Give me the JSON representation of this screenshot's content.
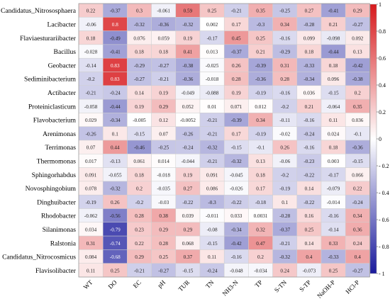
{
  "chart_data": {
    "type": "heatmap",
    "rows": [
      "Candidatus_Nitrososphaera",
      "Lacibacter",
      "Flaviaesturariibacter",
      "Bacillus",
      "Geobacter",
      "Sediminibacterium",
      "Actibacter",
      "Proteiniclasticum",
      "Flavobacterium",
      "Arenimonas",
      "Terrimonas",
      "Thermomonas",
      "Sphingorhabdus",
      "Novosphingobium",
      "Dinghuibacter",
      "Rhodobacter",
      "Silanimonas",
      "Ralstonia",
      "Candidatus_Nitrocosmicus",
      "Flavisolibacter"
    ],
    "columns": [
      "WT",
      "DO",
      "EC",
      "pH",
      "TUR",
      "TN",
      "NH3-N",
      "TP",
      "S-TN",
      "S-TP",
      "NaOH-P",
      "HCl-P"
    ],
    "values": [
      [
        "0.22",
        "-0.37",
        "0.3",
        "-0.061",
        "0.59",
        "0.25",
        "-0.21",
        "0.35",
        "-0.25",
        "0.27",
        "-0.41",
        "0.29"
      ],
      [
        "-0.06",
        "0.8",
        "-0.32",
        "-0.36",
        "-0.32",
        "0.002",
        "0.17",
        "-0.3",
        "0.34",
        "-0.28",
        "0.21",
        "-0.27"
      ],
      [
        "0.18",
        "-0.49",
        "0.076",
        "0.059",
        "0.19",
        "-0.17",
        "0.45",
        "0.25",
        "-0.16",
        "0.099",
        "-0.098",
        "0.092"
      ],
      [
        "-0.028",
        "-0.41",
        "0.18",
        "0.18",
        "0.41",
        "0.013",
        "-0.37",
        "0.21",
        "-0.29",
        "0.18",
        "-0.44",
        "0.13"
      ],
      [
        "-0.14",
        "0.83",
        "-0.29",
        "-0.27",
        "-0.38",
        "-0.025",
        "0.26",
        "-0.39",
        "0.31",
        "-0.33",
        "0.18",
        "-0.42"
      ],
      [
        "-0.2",
        "0.83",
        "-0.27",
        "-0.21",
        "-0.36",
        "-0.018",
        "0.28",
        "-0.36",
        "0.28",
        "-0.34",
        "0.096",
        "-0.38"
      ],
      [
        "-0.21",
        "-0.24",
        "0.14",
        "0.19",
        "-0.049",
        "-0.088",
        "0.19",
        "-0.19",
        "-0.16",
        "0.036",
        "-0.15",
        "0.2"
      ],
      [
        "-0.058",
        "-0.44",
        "0.19",
        "0.29",
        "0.052",
        "0.01",
        "0.071",
        "0.012",
        "-0.2",
        "0.21",
        "-0.064",
        "0.35"
      ],
      [
        "0.029",
        "-0.34",
        "-0.005",
        "0.12",
        "-0.0052",
        "-0.21",
        "-0.39",
        "0.34",
        "-0.11",
        "-0.16",
        "0.11",
        "0.036"
      ],
      [
        "-0.26",
        "0.1",
        "-0.15",
        "0.07",
        "-0.26",
        "-0.21",
        "0.17",
        "-0.19",
        "-0.02",
        "-0.24",
        "0.024",
        "-0.1"
      ],
      [
        "0.07",
        "0.44",
        "-0.46",
        "-0.25",
        "-0.24",
        "-0.32",
        "-0.15",
        "-0.1",
        "0.26",
        "-0.16",
        "0.18",
        "-0.36"
      ],
      [
        "0.017",
        "-0.13",
        "0.061",
        "0.014",
        "-0.044",
        "-0.21",
        "-0.32",
        "0.13",
        "-0.06",
        "-0.23",
        "0.003",
        "-0.15"
      ],
      [
        "0.091",
        "-0.055",
        "0.18",
        "-0.018",
        "0.19",
        "0.091",
        "-0.045",
        "0.18",
        "-0.2",
        "-0.22",
        "-0.17",
        "0.066"
      ],
      [
        "0.078",
        "-0.32",
        "0.2",
        "-0.035",
        "0.27",
        "0.086",
        "-0.026",
        "0.17",
        "-0.19",
        "0.14",
        "-0.079",
        "0.22"
      ],
      [
        "-0.19",
        "0.26",
        "-0.2",
        "-0.03",
        "-0.22",
        "-0.3",
        "-0.22",
        "-0.18",
        "0.1",
        "-0.22",
        "-0.014",
        "-0.24"
      ],
      [
        "-0.062",
        "-0.56",
        "0.28",
        "0.38",
        "0.039",
        "-0.011",
        "0.033",
        "0.0031",
        "-0.28",
        "0.16",
        "-0.16",
        "0.34"
      ],
      [
        "0.034",
        "-0.79",
        "0.23",
        "0.29",
        "0.29",
        "-0.08",
        "-0.34",
        "0.32",
        "-0.37",
        "0.25",
        "-0.14",
        "0.36"
      ],
      [
        "0.31",
        "-0.74",
        "0.22",
        "0.28",
        "0.068",
        "-0.15",
        "-0.42",
        "0.47",
        "-0.21",
        "0.14",
        "0.33",
        "0.24"
      ],
      [
        "0.084",
        "-0.68",
        "0.29",
        "0.25",
        "0.37",
        "0.11",
        "-0.16",
        "0.2",
        "-0.32",
        "0.4",
        "-0.33",
        "0.4"
      ],
      [
        "0.11",
        "0.25",
        "-0.21",
        "-0.27",
        "-0.15",
        "-0.24",
        "-0.048",
        "-0.034",
        "0.24",
        "-0.073",
        "0.25",
        "-0.27"
      ]
    ],
    "colorbar": {
      "ticks": [
        "1",
        "0.8",
        "0.6",
        "0.4",
        "0.2",
        "0",
        "- 0.2",
        "- 0.4",
        "- 0.6",
        "- 0.8",
        "- 1"
      ],
      "tick_values": [
        1,
        0.8,
        0.6,
        0.4,
        0.2,
        0,
        -0.2,
        -0.4,
        -0.6,
        -0.8,
        -1
      ],
      "range": [
        -1,
        1
      ],
      "colors": {
        "high": "#d7191c",
        "mid": "#ffffff",
        "low": "#1a1a9c"
      }
    },
    "grid": true,
    "legend_position": "right"
  }
}
